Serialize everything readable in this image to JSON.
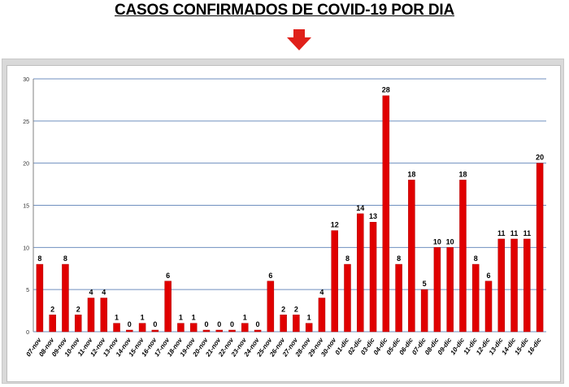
{
  "title": "CASOS CONFIRMADOS DE COVID-19 POR DIA",
  "colors": {
    "bar": "#e00000",
    "grid": "#6f8fbf",
    "label": "#000000",
    "arrow": "#e0201a"
  },
  "chart_data": {
    "type": "bar",
    "title": "",
    "xlabel": "",
    "ylabel": "",
    "ylim": [
      0,
      30
    ],
    "yticks": [
      0,
      5,
      10,
      15,
      20,
      25,
      30
    ],
    "grid": true,
    "categories": [
      "07-nov",
      "08-nov",
      "09-nov",
      "10-nov",
      "11-nov",
      "12-nov",
      "13-nov",
      "14-nov",
      "15-nov",
      "16-nov",
      "17-nov",
      "18-nov",
      "19-nov",
      "20-nov",
      "21-nov",
      "22-nov",
      "23-nov",
      "24-nov",
      "25-nov",
      "26-nov",
      "27-nov",
      "28-nov",
      "29-nov",
      "30-nov",
      "01-dic",
      "02-dic",
      "03-dic",
      "04-dic",
      "05-dic",
      "06-dic",
      "07-dic",
      "08-dic",
      "09-dic",
      "10-dic",
      "11-dic",
      "12-dic",
      "13-dic",
      "14-dic",
      "15-dic",
      "16-dic"
    ],
    "values": [
      8,
      2,
      8,
      2,
      4,
      4,
      1,
      0,
      1,
      0,
      6,
      1,
      1,
      0,
      0,
      0,
      1,
      0,
      6,
      2,
      2,
      1,
      4,
      12,
      8,
      14,
      13,
      28,
      8,
      18,
      5,
      10,
      10,
      18,
      8,
      6,
      11,
      11,
      11,
      20
    ]
  }
}
